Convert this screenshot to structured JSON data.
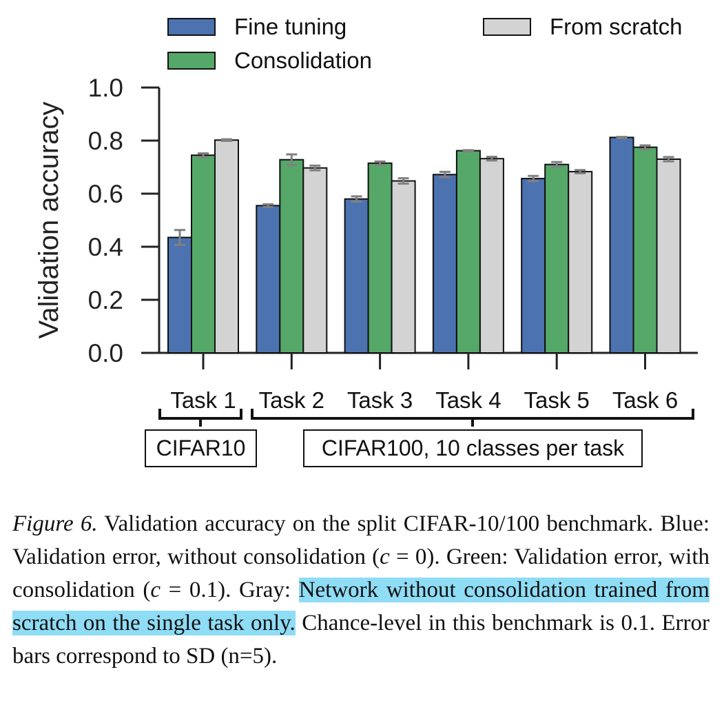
{
  "chart_data": {
    "type": "bar",
    "ylabel": "Validation accuracy",
    "ylim": [
      0,
      1.0
    ],
    "yticks": [
      "0.0",
      "0.2",
      "0.4",
      "0.6",
      "0.8",
      "1.0"
    ],
    "categories": [
      "Task 1",
      "Task 2",
      "Task 3",
      "Task 4",
      "Task 5",
      "Task 6"
    ],
    "series": [
      {
        "name": "Fine tuning",
        "color": "#4c72b0",
        "values": [
          0.435,
          0.555,
          0.58,
          0.672,
          0.657,
          0.812
        ],
        "sd": [
          0.028,
          0.005,
          0.01,
          0.01,
          0.01,
          0.002
        ]
      },
      {
        "name": "Consolidation",
        "color": "#55a868",
        "values": [
          0.745,
          0.728,
          0.715,
          0.762,
          0.71,
          0.775
        ],
        "sd": [
          0.007,
          0.02,
          0.006,
          0.002,
          0.009,
          0.007
        ]
      },
      {
        "name": "From scratch",
        "color": "#d3d3d3",
        "values": [
          0.802,
          0.697,
          0.648,
          0.732,
          0.683,
          0.73
        ],
        "sd": [
          0.003,
          0.009,
          0.01,
          0.007,
          0.006,
          0.008
        ]
      }
    ],
    "groups": [
      {
        "label": "CIFAR10",
        "tasks": [
          0
        ]
      },
      {
        "label": "CIFAR100, 10 classes per task",
        "tasks": [
          1,
          2,
          3,
          4,
          5
        ]
      }
    ],
    "legend_position": "top",
    "grid": false
  },
  "caption": {
    "figure_label": "Figure 6.",
    "part1": " Validation accuracy on the split CIFAR-10/100 benchmark.  Blue: Validation error, without consolidation (",
    "c_symbol": "c",
    "eq0": " = 0). ",
    "part2": "Green: Validation error, with consolidation (",
    "eq1": " = 0.1).  Gray: ",
    "highlighted": "Network without consolidation trained from scratch on the single task only.",
    "part3": " Chance-level in this benchmark is 0.1.  Error bars correspond to SD (n=5)."
  }
}
